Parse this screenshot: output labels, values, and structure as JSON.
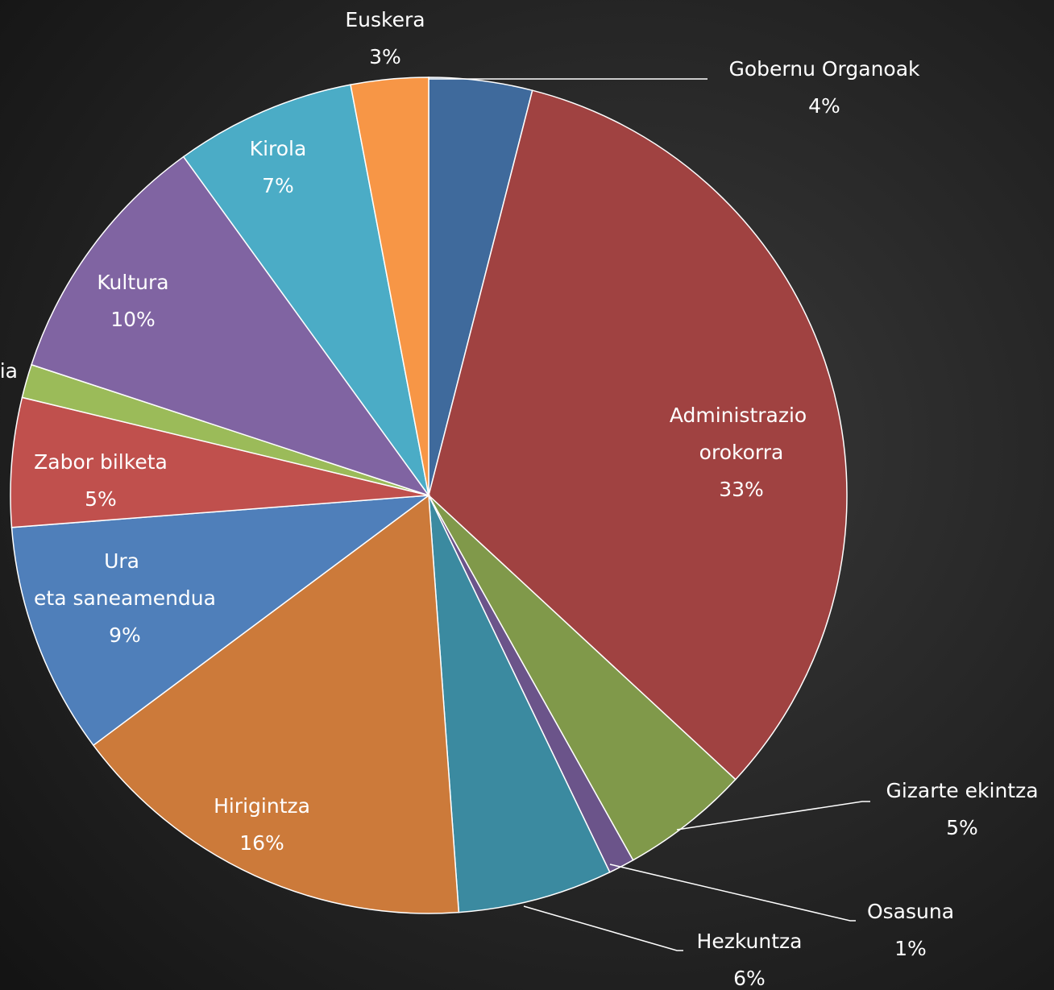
{
  "chart_data": {
    "type": "pie",
    "categories": [
      "Gobernu Organoak",
      "Administrazio orokorra",
      "Gizarte ekintza",
      "Osasuna",
      "Hezkuntza",
      "Hirigintza",
      "Ura eta saneamendua",
      "Zabor bilketa",
      "ia",
      "Kultura",
      "Kirola",
      "Euskera"
    ],
    "values": [
      4,
      33,
      5,
      1,
      6,
      16,
      9,
      5,
      1.3,
      10,
      7,
      3
    ],
    "value_labels": [
      "4%",
      "33%",
      "5%",
      "1%",
      "6%",
      "16%",
      "9%",
      "5%",
      null,
      "10%",
      "7%",
      "3%"
    ],
    "colors": [
      "#3f6a9c",
      "#a04241",
      "#80994a",
      "#6b548a",
      "#3b8aa0",
      "#cc7a3a",
      "#4f7fba",
      "#c0504d",
      "#9bbb59",
      "#8064a2",
      "#4bacc6",
      "#f79646"
    ]
  }
}
